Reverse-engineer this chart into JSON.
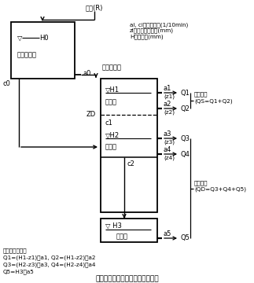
{
  "title": "図２．改良型棚田タンクモデル図",
  "bg_color": "#ffffff",
  "fs": 5.2,
  "fm": 6.0,
  "rain_label": "降雨(R)",
  "legend_text": "ai, ci：流出係数(1/10min)\nzi：流出孔の位置(mm)\nH：貯留高(mm)",
  "formula_line1": "各流出の計算式",
  "formula_line2": "Q1=(H1-z1)・a1, Q2=(H1-z2)・a2",
  "formula_line3": "Q3=(H2-z3)・a3, Q4=(H2-z4)・a4",
  "formula_line4": "Q5=H3・a5",
  "surface_runoff_1": "地表流出",
  "surface_runoff_2": "(QS=Q1+Q2)",
  "underground_runoff_1": "地下流出",
  "underground_runoff_2": "(QD=Q3+Q4+Q5)",
  "tank0_label": "貯畔タンク",
  "H0_label": "▽",
  "H0_label2": "H0",
  "tank1_label": "水田タンク",
  "H1_label": "▽H1",
  "H2_label": "▽H2",
  "H3_label": "▽ H3",
  "surface_label": "地表部",
  "subsoil_label": "作土層",
  "clay_label": "心土層",
  "ZD_label": "ZD",
  "a0_label": "a0",
  "c0_label": "c0",
  "c1_label": "c1",
  "c2_label": "c2",
  "a5_label": "a5",
  "Q5_label": "Q5",
  "outlets": [
    {
      "a": "a1",
      "z": "(z1)",
      "q": "Q1"
    },
    {
      "a": "a2",
      "z": "(z2)",
      "q": "Q2"
    },
    {
      "a": "a3",
      "z": "(z3)",
      "q": "Q3"
    },
    {
      "a": "a4",
      "z": "(z4)",
      "q": "Q4"
    }
  ]
}
